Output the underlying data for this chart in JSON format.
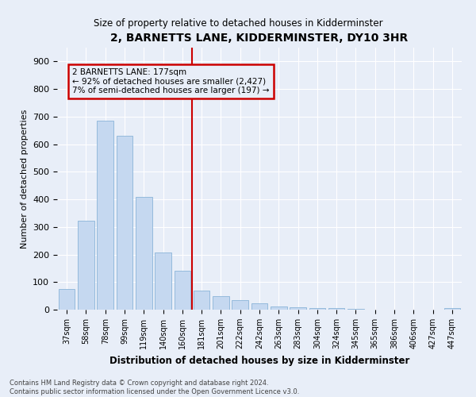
{
  "title": "2, BARNETTS LANE, KIDDERMINSTER, DY10 3HR",
  "subtitle": "Size of property relative to detached houses in Kidderminster",
  "xlabel": "Distribution of detached houses by size in Kidderminster",
  "ylabel": "Number of detached properties",
  "footer_line1": "Contains HM Land Registry data © Crown copyright and database right 2024.",
  "footer_line2": "Contains public sector information licensed under the Open Government Licence v3.0.",
  "categories": [
    "37sqm",
    "58sqm",
    "78sqm",
    "99sqm",
    "119sqm",
    "140sqm",
    "160sqm",
    "181sqm",
    "201sqm",
    "222sqm",
    "242sqm",
    "263sqm",
    "283sqm",
    "304sqm",
    "324sqm",
    "345sqm",
    "365sqm",
    "386sqm",
    "406sqm",
    "427sqm",
    "447sqm"
  ],
  "values": [
    75,
    322,
    685,
    630,
    410,
    207,
    140,
    70,
    48,
    35,
    22,
    12,
    10,
    5,
    5,
    2,
    1,
    1,
    0,
    0,
    7
  ],
  "bar_color": "#c5d8f0",
  "bar_edge_color": "#8ab4d8",
  "annotation_line1": "2 BARNETTS LANE: 177sqm",
  "annotation_line2": "← 92% of detached houses are smaller (2,427)",
  "annotation_line3": "7% of semi-detached houses are larger (197) →",
  "annotation_box_color": "#cc0000",
  "ylim": [
    0,
    950
  ],
  "yticks": [
    0,
    100,
    200,
    300,
    400,
    500,
    600,
    700,
    800,
    900
  ],
  "background_color": "#e8eef8",
  "grid_color": "#ffffff",
  "vline_position": 7.0
}
